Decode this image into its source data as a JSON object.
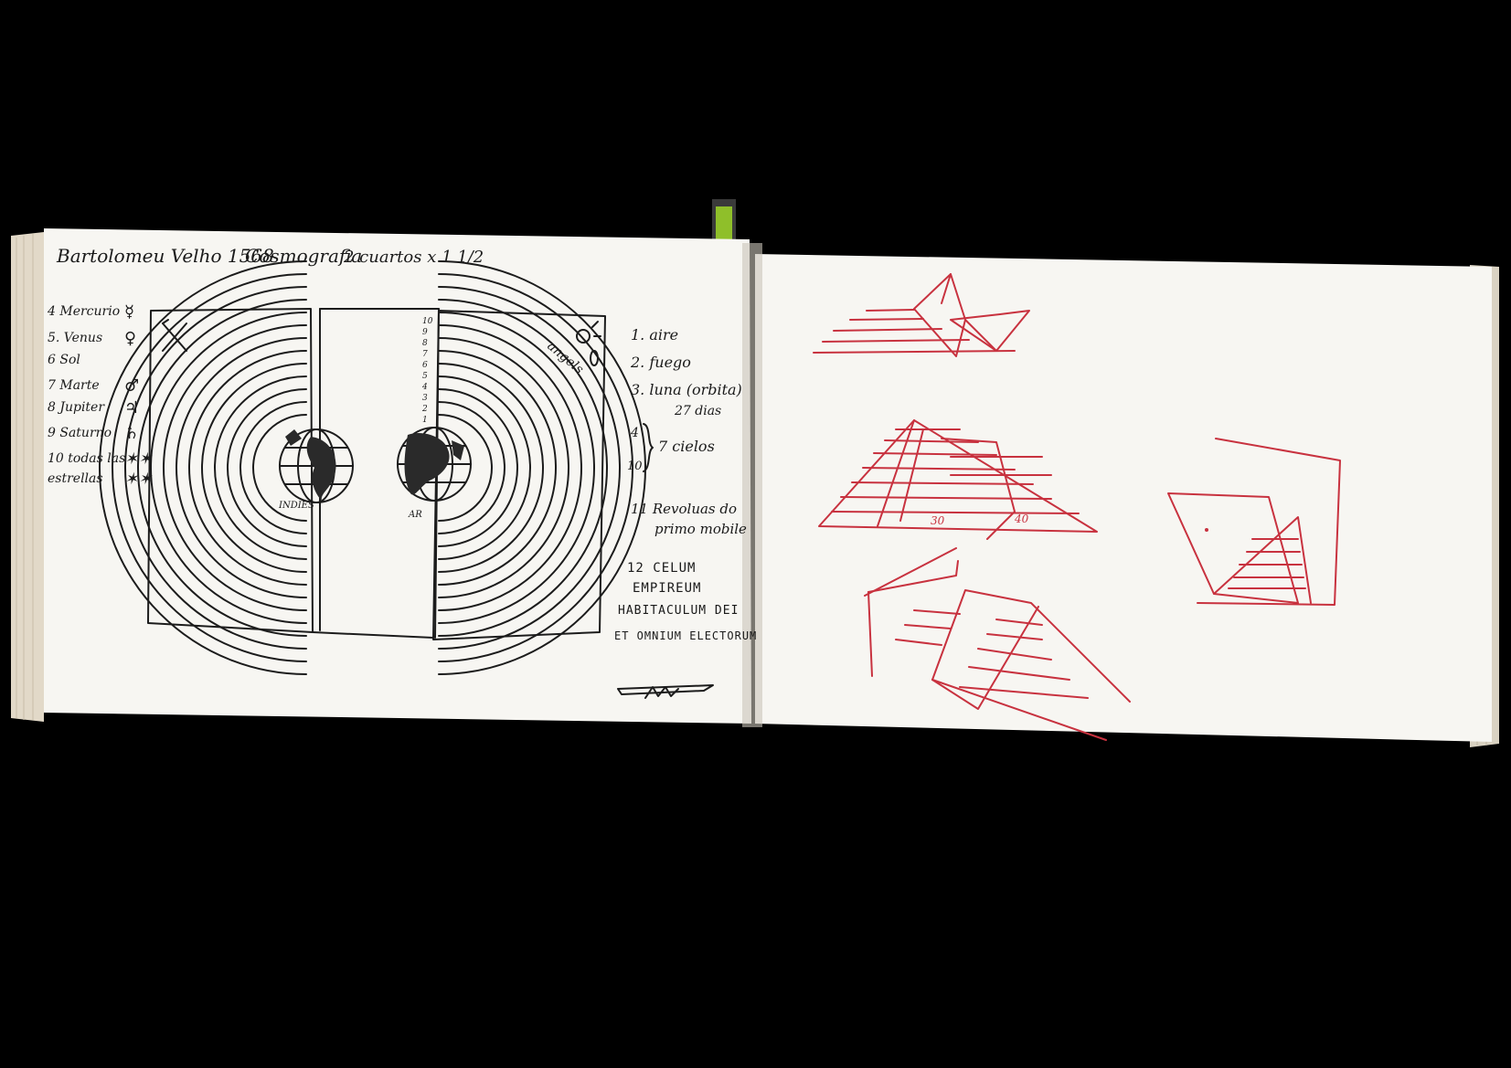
{
  "notebook": {
    "left_page": {
      "header": {
        "author_date": "Bartolomeu Velho 1568",
        "subject": "Cosmografia",
        "size_note": "2 cuartos x 1 1/2"
      },
      "planets": [
        {
          "n": "4",
          "name": "Mercurio",
          "symbol": "☿"
        },
        {
          "n": "5.",
          "name": "Venus",
          "symbol": "♀"
        },
        {
          "n": "6",
          "name": "Sol",
          "symbol": ""
        },
        {
          "n": "7",
          "name": "Marte",
          "symbol": "♂"
        },
        {
          "n": "8",
          "name": "Jupiter",
          "symbol": "♃"
        },
        {
          "n": "9",
          "name": "Saturno",
          "symbol": "♄"
        },
        {
          "n": "10",
          "name": "todas las",
          "symbol": "✶✶"
        },
        {
          "n": "",
          "name": "estrellas",
          "symbol": "✶✶"
        }
      ],
      "spheres": {
        "item1": "1. aire",
        "item2": "2. fuego",
        "item3": "3. luna (orbita)",
        "item3b": "27 dias",
        "range_top": "4",
        "range_bottom": "10",
        "range_label": "7 cielos",
        "item11a": "11 Revoluas do",
        "item11b": "primo mobile",
        "item12a": "12 CELUM",
        "item12b": "EMPIREUM",
        "item12c": "HABITACULUM DEI",
        "item12d": "ET OMNIUM ELECTORUM"
      },
      "diagram_labels": {
        "globe_left": "INDIES",
        "globe_right": "AR",
        "angels": "angels",
        "axis_numbers": [
          "1",
          "2",
          "3",
          "4",
          "5",
          "6",
          "7",
          "8",
          "9",
          "10"
        ]
      }
    },
    "right_page": {
      "sketch_numbers": [
        "30",
        "40"
      ]
    },
    "colors": {
      "background": "#000000",
      "paper": "#f7f6f2",
      "ink": "#1c1c1c",
      "red_pencil": "#c8323f",
      "bookmark": "#8fbf2a"
    }
  }
}
